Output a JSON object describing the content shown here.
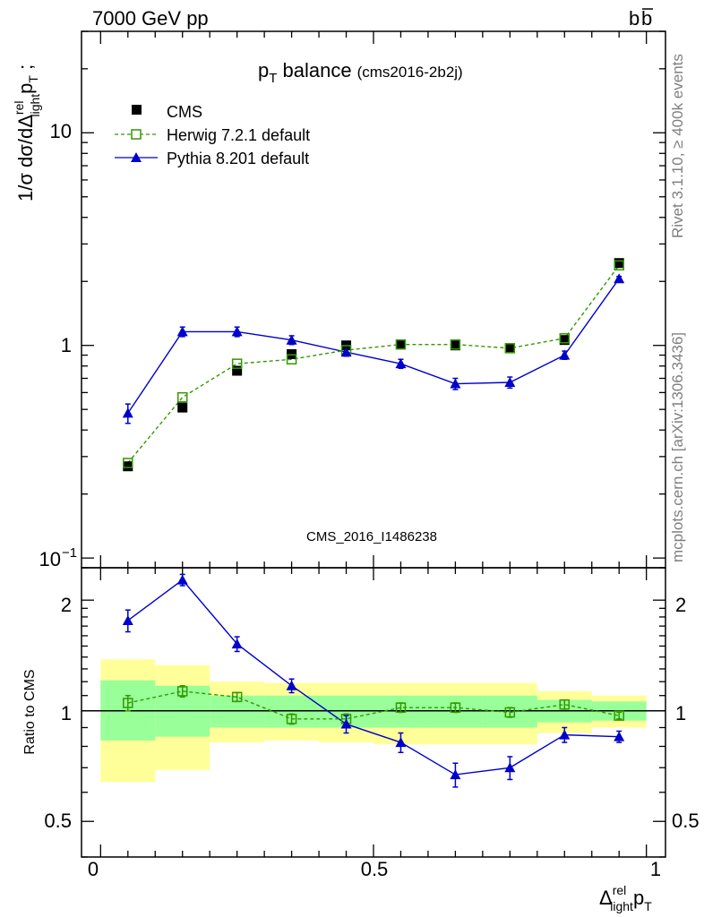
{
  "header": {
    "energy_label": "7000 GeV pp",
    "process_label": "b",
    "process_label_bar": "b"
  },
  "side_labels": {
    "rivet": "Rivet 3.1.10, ≥ 400k events",
    "mcplots": "mcplots.cern.ch [arXiv:1306.3436]"
  },
  "main_panel": {
    "title_main": "p",
    "title_sub": "T",
    "title_rest": " balance",
    "title_tag": "(cms2016-2b2j)",
    "watermark": "CMS_2016_I1486238",
    "ylabel_parts": [
      "1/σ dσ/dΔ",
      "rel",
      "light",
      "p",
      "T",
      " ;"
    ],
    "ytick_labels": [
      "1",
      "10"
    ],
    "ytick_exp_base": "10",
    "ytick_exp_power": "−1"
  },
  "ratio_panel": {
    "ylabel": "Ratio to CMS",
    "ytick_labels": [
      "0.5",
      "1",
      "2"
    ]
  },
  "xaxis": {
    "label_main": "Δ",
    "label_sup": "rel",
    "label_sub": "light",
    "label_p": "p",
    "label_t": "T",
    "tick_labels": [
      "0",
      "0.5",
      "1"
    ]
  },
  "legend": {
    "entries": [
      {
        "label": "CMS",
        "marker": "filled-square",
        "color": "#000000"
      },
      {
        "label": "Herwig 7.2.1 default",
        "marker": "open-square",
        "color": "#339900"
      },
      {
        "label": "Pythia 8.201 default",
        "marker": "filled-triangle",
        "color": "#0000cc"
      }
    ]
  },
  "chart_data": {
    "type": "scatter",
    "x": [
      0.05,
      0.15,
      0.25,
      0.35,
      0.45,
      0.55,
      0.65,
      0.75,
      0.85,
      0.95
    ],
    "bin_edges": [
      0,
      0.1,
      0.2,
      0.3,
      0.4,
      0.5,
      0.6,
      0.7,
      0.8,
      0.9,
      1.0
    ],
    "xlim": [
      -0.035,
      1.035
    ],
    "main_ylim": [
      0.09,
      30
    ],
    "main_yscale": "log",
    "ratio_ylim": [
      0.4,
      2.45
    ],
    "ratio_yscale": "log",
    "series": [
      {
        "name": "CMS",
        "color": "#000000",
        "values": [
          0.27,
          0.51,
          0.76,
          0.91,
          1.0,
          1.01,
          1.0,
          0.97,
          1.06,
          2.44
        ]
      },
      {
        "name": "Herwig 7.2.1 default",
        "color": "#339900",
        "values": [
          0.28,
          0.57,
          0.82,
          0.86,
          0.95,
          1.01,
          1.01,
          0.97,
          1.08,
          2.38
        ]
      },
      {
        "name": "Pythia 8.201 default",
        "color": "#0000cc",
        "values": [
          0.48,
          1.16,
          1.16,
          1.06,
          0.93,
          0.82,
          0.66,
          0.67,
          0.9,
          2.06
        ]
      }
    ],
    "main_errors": {
      "Pythia 8.201 default": [
        0.05,
        0.06,
        0.06,
        0.05,
        0.04,
        0.04,
        0.04,
        0.04,
        0.04,
        0.05
      ],
      "Herwig 7.2.1 default": [
        0.01,
        0.02,
        0.02,
        0.02,
        0.02,
        0.02,
        0.02,
        0.02,
        0.02,
        0.04
      ]
    },
    "ratio": {
      "Herwig 7.2.1 default": [
        1.05,
        1.13,
        1.09,
        0.95,
        0.95,
        1.02,
        1.02,
        0.99,
        1.04,
        0.97
      ],
      "Pythia 8.201 default": [
        1.76,
        2.27,
        1.52,
        1.17,
        0.92,
        0.82,
        0.67,
        0.7,
        0.86,
        0.85
      ]
    },
    "ratio_errors": {
      "Herwig 7.2.1 default": [
        0.05,
        0.04,
        0.03,
        0.03,
        0.03,
        0.03,
        0.03,
        0.03,
        0.03,
        0.02
      ],
      "Pythia 8.201 default": [
        0.12,
        0.08,
        0.07,
        0.05,
        0.05,
        0.05,
        0.05,
        0.05,
        0.04,
        0.03
      ]
    },
    "bands": {
      "yellow_low": [
        0.64,
        0.69,
        0.82,
        0.83,
        0.82,
        0.81,
        0.81,
        0.81,
        0.87,
        0.9
      ],
      "yellow_high": [
        1.38,
        1.33,
        1.2,
        1.19,
        1.19,
        1.19,
        1.19,
        1.19,
        1.13,
        1.1
      ],
      "green_low": [
        0.83,
        0.85,
        0.9,
        0.9,
        0.9,
        0.9,
        0.9,
        0.9,
        0.93,
        0.94
      ],
      "green_high": [
        1.21,
        1.17,
        1.1,
        1.1,
        1.1,
        1.1,
        1.1,
        1.1,
        1.07,
        1.06
      ],
      "yellow_color": "#ffff99",
      "green_color": "#99ff99"
    }
  }
}
